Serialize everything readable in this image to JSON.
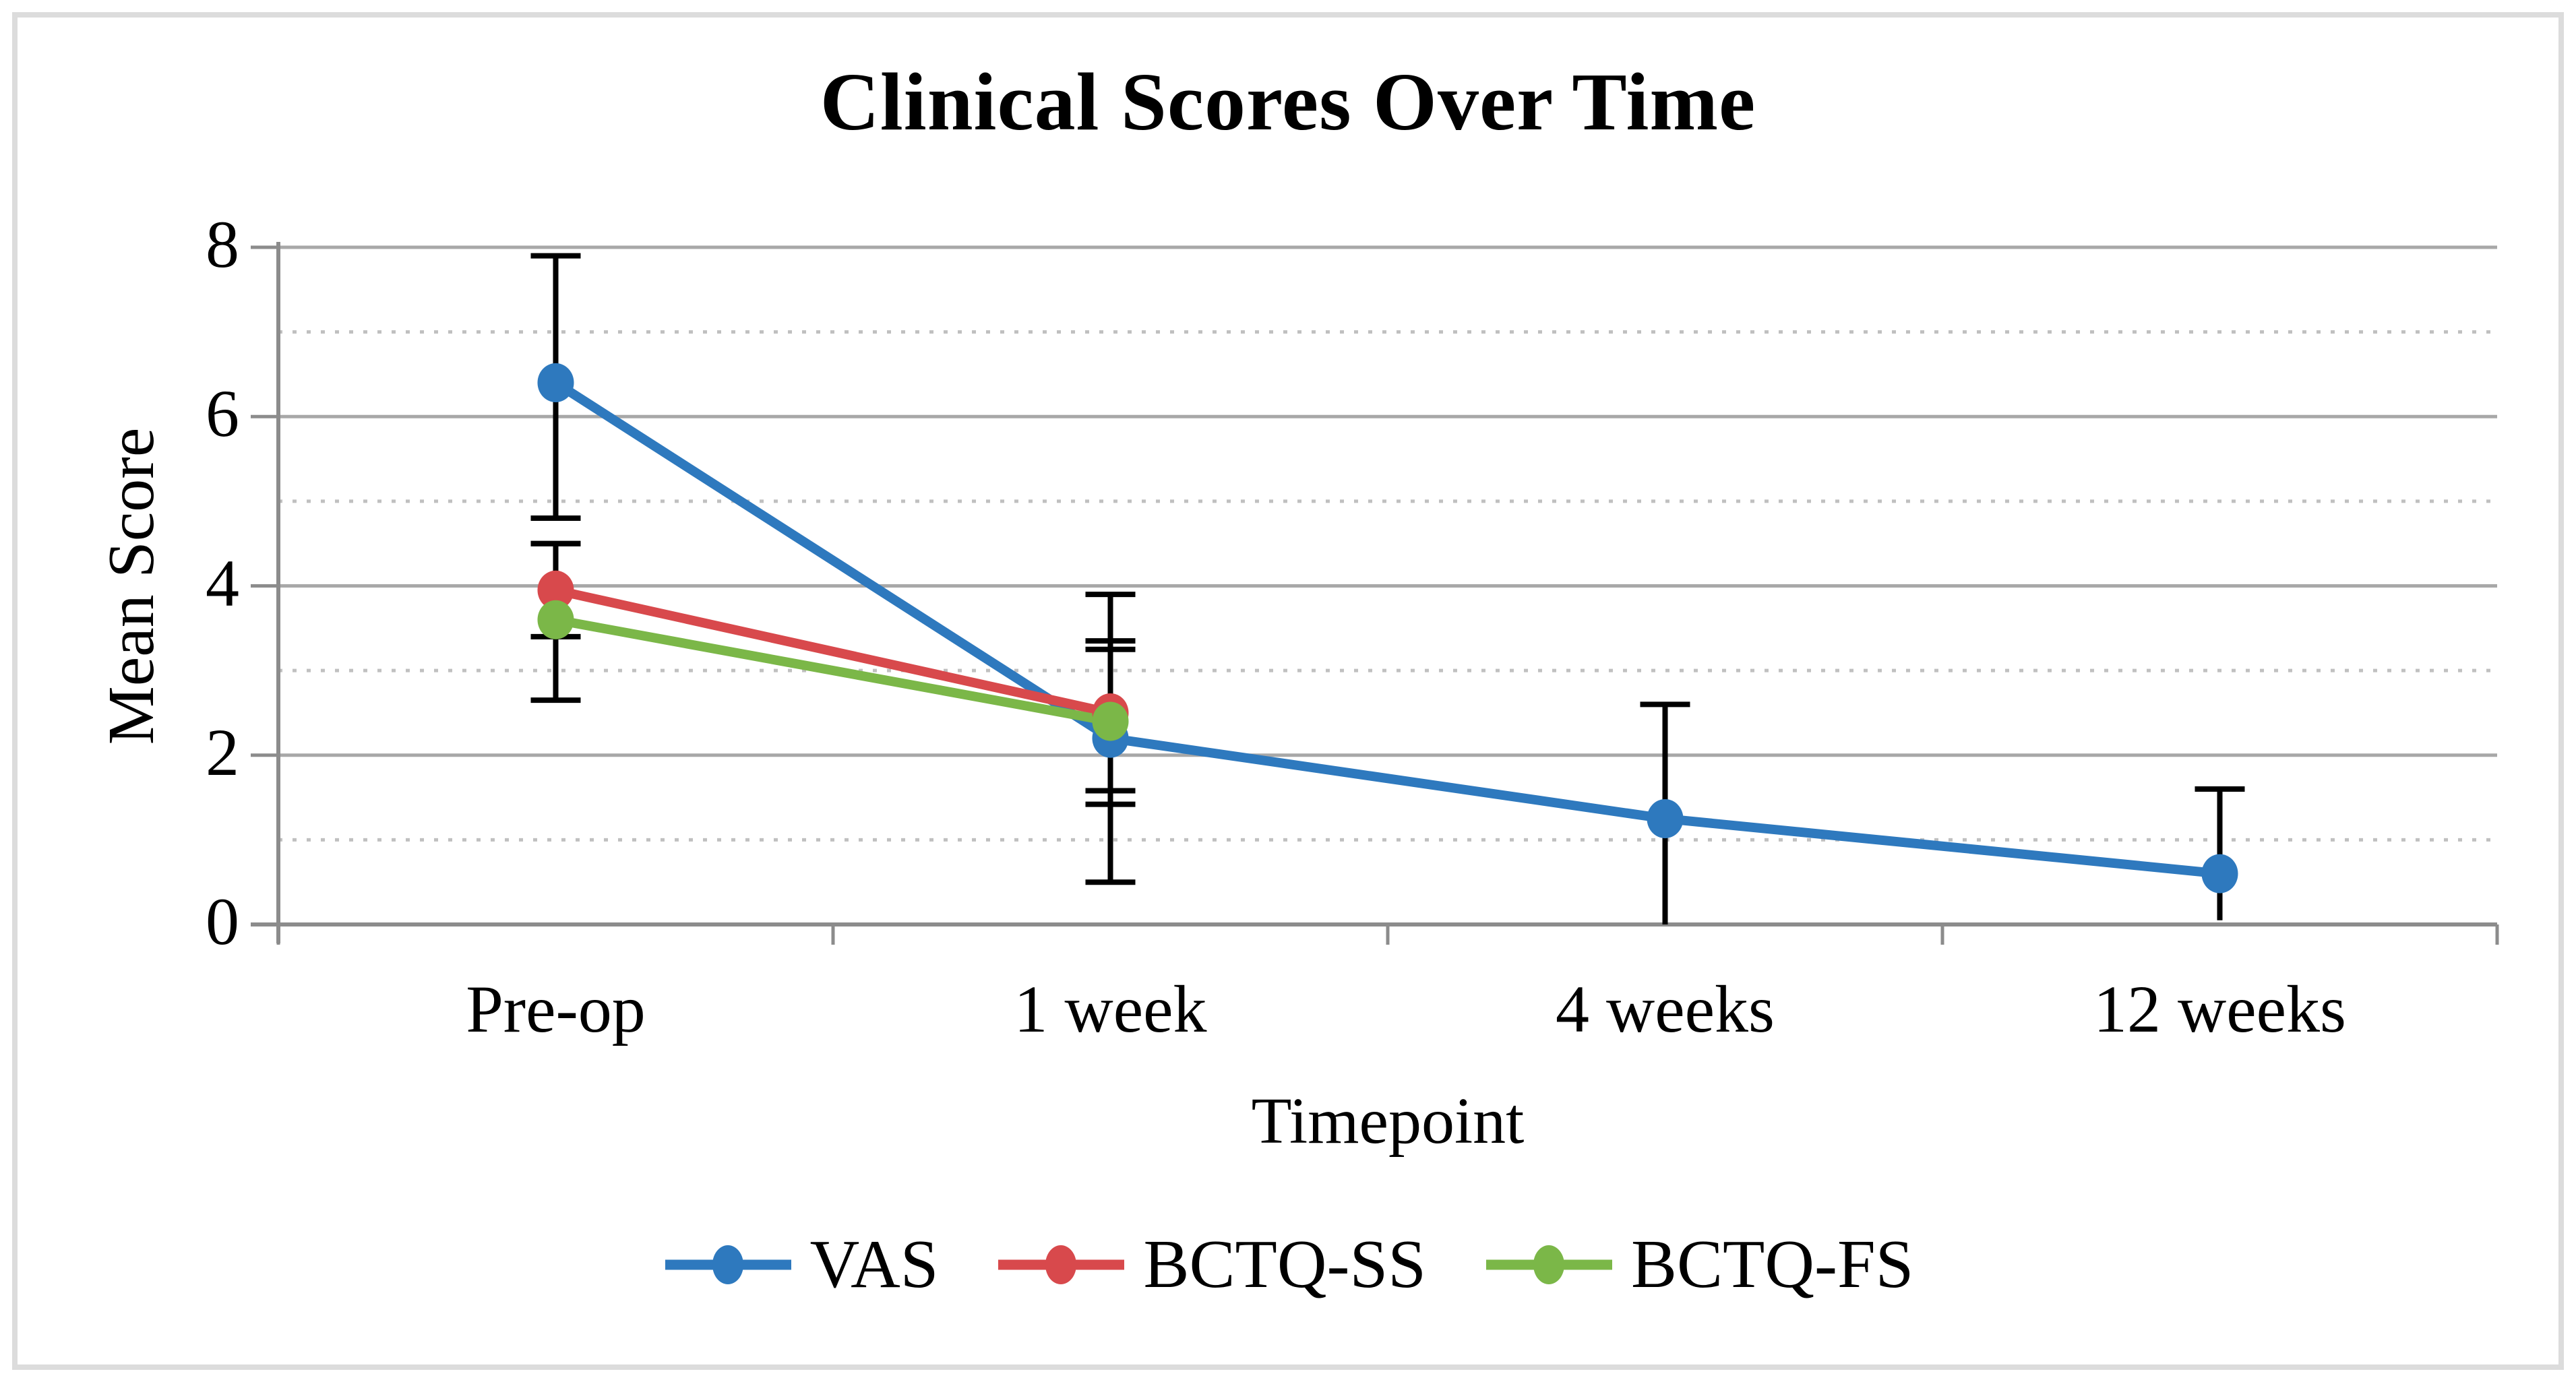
{
  "figure": {
    "border_color": "#DCDCDC",
    "background": "#FFFFFF"
  },
  "chart_data": {
    "type": "line",
    "title": "Clinical Scores Over Time",
    "xlabel": "Timepoint",
    "ylabel": "Mean Score",
    "categories": [
      "Pre-op",
      "1 week",
      "4 weeks",
      "12 weeks"
    ],
    "ylim": [
      0,
      8
    ],
    "yticks": [
      0,
      2,
      4,
      6,
      8
    ],
    "ytick_labels": [
      "0",
      "2",
      "4",
      "6",
      "8"
    ],
    "grid": {
      "major_solid_at": [
        2,
        4,
        6,
        8
      ],
      "minor_dotted_at": [
        1,
        3,
        5,
        7
      ]
    },
    "legend_position": "bottom",
    "series": [
      {
        "name": "VAS",
        "color": "#2E79BE",
        "values": [
          6.4,
          2.2,
          1.25,
          0.6
        ],
        "error_low": [
          4.8,
          0.5,
          0.0,
          0.05
        ],
        "error_high": [
          7.9,
          3.9,
          2.6,
          1.6
        ]
      },
      {
        "name": "BCTQ-SS",
        "color": "#D8494C",
        "values": [
          3.95,
          2.5,
          null,
          null
        ],
        "error_low": [
          3.4,
          1.58,
          null,
          null
        ],
        "error_high": [
          4.5,
          3.35,
          null,
          null
        ]
      },
      {
        "name": "BCTQ-FS",
        "color": "#7BB748",
        "values": [
          3.6,
          2.4,
          null,
          null
        ],
        "error_low": [
          2.65,
          1.42,
          null,
          null
        ],
        "error_high": [
          4.5,
          3.25,
          null,
          null
        ]
      }
    ],
    "style": {
      "axis_color": "#8C8C8C",
      "major_grid_color": "#A8A8A8",
      "minor_grid_color": "#C0C0C0",
      "error_bar_color": "#000000"
    }
  }
}
